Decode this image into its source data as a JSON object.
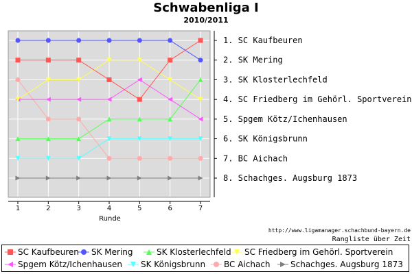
{
  "title": "Schwabenliga I",
  "subtitle": "2010/2011",
  "source_url": "http://www.ligamanager.schachbund-bayern.de",
  "caption": "Rangliste über Zeit",
  "chart_data": {
    "type": "line",
    "xlabel": "Runde",
    "x": [
      1,
      2,
      3,
      4,
      5,
      6,
      7
    ],
    "ylim": [
      0.5,
      8.5
    ],
    "y_inverted": true,
    "grid": true,
    "rank_labels": [
      "1. SC Kaufbeuren",
      "2. SK Mering",
      "3. SK Klosterlechfeld",
      "4. SC Friedberg im Gehörl. Sportverein",
      "5. Spgem Kötz/Ichenhausen",
      "6. SK Königsbrunn",
      "7. BC Aichach",
      "8. Schachges. Augsburg 1873"
    ],
    "series": [
      {
        "name": "SC Kaufbeuren",
        "color": "#ff5555",
        "marker": "square",
        "values": [
          2,
          2,
          2,
          3,
          4,
          2,
          1
        ]
      },
      {
        "name": "SK Mering",
        "color": "#5555ff",
        "marker": "circle",
        "values": [
          1,
          1,
          1,
          1,
          1,
          1,
          2
        ]
      },
      {
        "name": "SK Klosterlechfeld",
        "color": "#55ff55",
        "marker": "triangle-up",
        "values": [
          6,
          6,
          6,
          5,
          5,
          5,
          3
        ]
      },
      {
        "name": "SC Friedberg im Gehörl. Sportverein",
        "color": "#ffff55",
        "marker": "triangle-down",
        "values": [
          4,
          3,
          3,
          2,
          2,
          3,
          4
        ]
      },
      {
        "name": "Spgem Kötz/Ichenhausen",
        "color": "#ff55ff",
        "marker": "triangle-left",
        "values": [
          4,
          4,
          4,
          4,
          3,
          4,
          5
        ]
      },
      {
        "name": "SK Königsbrunn",
        "color": "#55ffff",
        "marker": "triangle-down",
        "values": [
          7,
          7,
          7,
          6,
          6,
          6,
          6
        ]
      },
      {
        "name": "BC Aichach",
        "color": "#ffaaaa",
        "marker": "circle",
        "values": [
          3,
          5,
          5,
          7,
          7,
          7,
          7
        ]
      },
      {
        "name": "Schachges. Augsburg 1873",
        "color": "#808080",
        "marker": "triangle-right",
        "values": [
          8,
          8,
          8,
          8,
          8,
          8,
          8
        ]
      }
    ]
  }
}
